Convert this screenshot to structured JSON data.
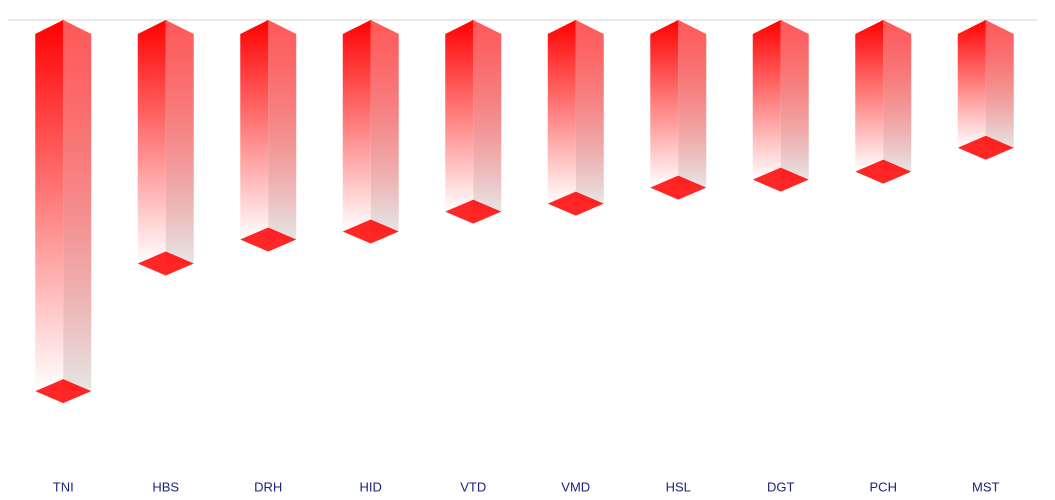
{
  "chart_data": {
    "type": "bar3d",
    "categories": [
      "TNI",
      "HBS",
      "DRH",
      "HID",
      "VTD",
      "VMD",
      "HSL",
      "DGT",
      "PCH",
      "MST"
    ],
    "values": [
      -9.3,
      -6.1,
      -5.5,
      -5.3,
      -4.8,
      -4.6,
      -4.2,
      -4.0,
      -3.8,
      -3.2
    ],
    "color": "#ff0000",
    "ylim": [
      -11,
      0
    ]
  }
}
